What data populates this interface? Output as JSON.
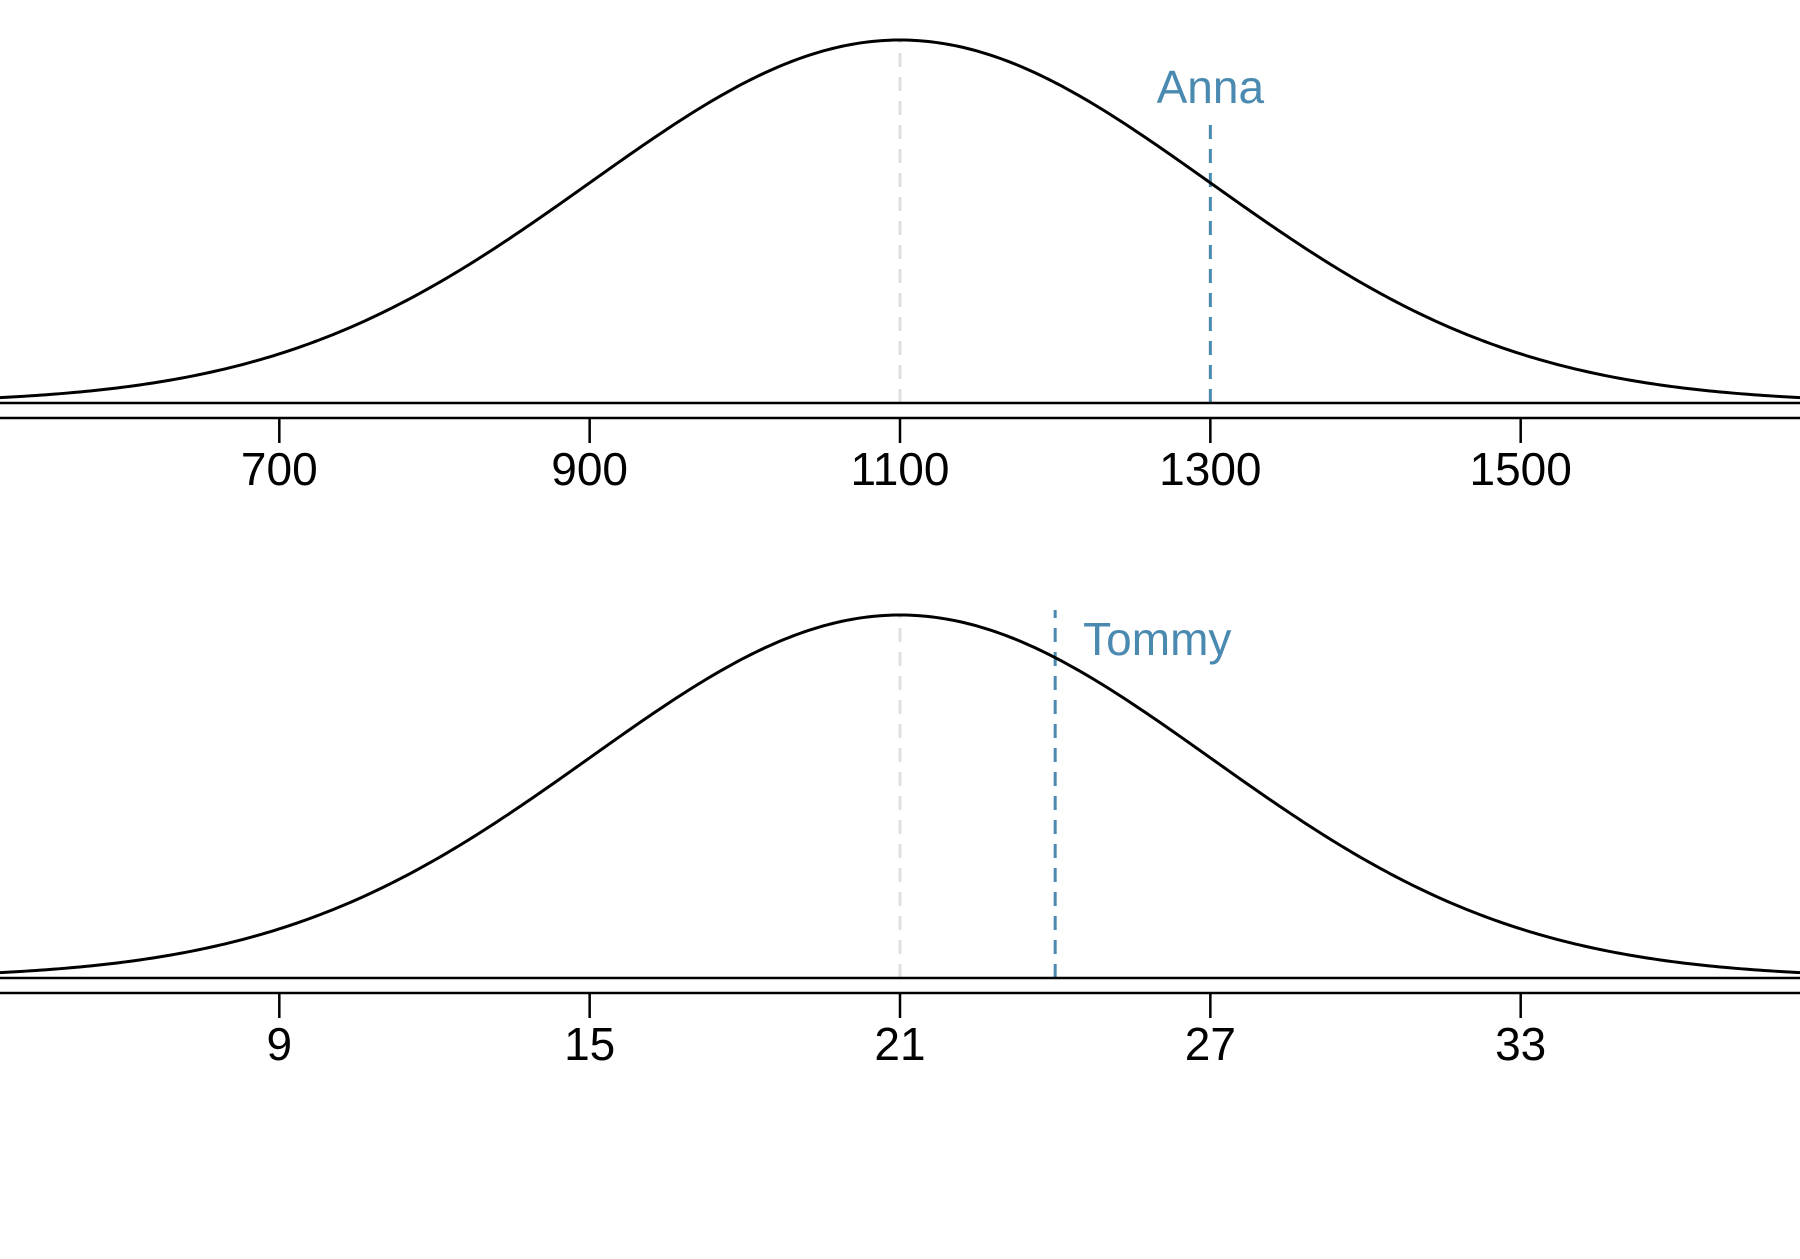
{
  "chart_data": [
    {
      "type": "line",
      "title": "",
      "xlabel": "",
      "ylabel": "",
      "distribution": "normal",
      "mean": 1100,
      "sd": 200,
      "xlim": [
        520,
        1680
      ],
      "ticks": [
        700,
        900,
        1100,
        1300,
        1500
      ],
      "tick_labels": [
        "700",
        "900",
        "1100",
        "1300",
        "1500"
      ],
      "mean_line": {
        "value": 1100,
        "style": "dashed",
        "color": "#e0e0e0"
      },
      "marker": {
        "label": "Anna",
        "value": 1300,
        "color": "#4a89b0",
        "label_position": "above"
      },
      "grid": false,
      "legend": "none"
    },
    {
      "type": "line",
      "title": "",
      "xlabel": "",
      "ylabel": "",
      "distribution": "normal",
      "mean": 21,
      "sd": 6,
      "xlim": [
        3.6,
        38.4
      ],
      "ticks": [
        9,
        15,
        21,
        27,
        33
      ],
      "tick_labels": [
        "9",
        "15",
        "21",
        "27",
        "33"
      ],
      "mean_line": {
        "value": 21,
        "style": "dashed",
        "color": "#e0e0e0"
      },
      "marker": {
        "label": "Tommy",
        "value": 24,
        "color": "#4a89b0",
        "label_position": "right"
      },
      "grid": false,
      "legend": "none"
    }
  ]
}
